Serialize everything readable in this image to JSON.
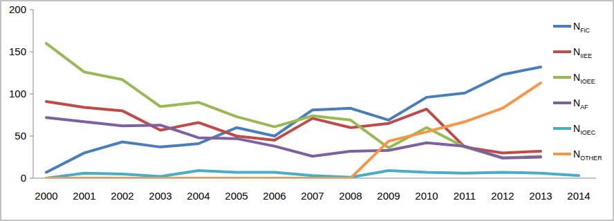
{
  "chart_data": {
    "type": "line",
    "categories": [
      "2000",
      "2001",
      "2002",
      "2003",
      "2004",
      "2005",
      "2006",
      "2007",
      "2008",
      "2009",
      "2010",
      "2011",
      "2012",
      "2013",
      "2014"
    ],
    "ylim": [
      0,
      200
    ],
    "yticks": [
      0,
      50,
      100,
      150,
      200
    ],
    "grid": false,
    "legend": "right",
    "series": [
      {
        "name": "NFiC",
        "color": "#4a7ebb",
        "values": [
          7,
          30,
          43,
          37,
          41,
          60,
          50,
          81,
          83,
          69,
          96,
          101,
          123,
          132,
          null
        ]
      },
      {
        "name": "NIIEE",
        "color": "#be4b48",
        "values": [
          91,
          84,
          80,
          57,
          66,
          50,
          45,
          71,
          60,
          65,
          82,
          37,
          30,
          32,
          null
        ]
      },
      {
        "name": "NIOEE",
        "color": "#98b954",
        "values": [
          160,
          126,
          117,
          85,
          90,
          73,
          61,
          74,
          69,
          36,
          60,
          37,
          24,
          26,
          null
        ]
      },
      {
        "name": "NAF",
        "color": "#7d60a0",
        "values": [
          72,
          67,
          62,
          63,
          48,
          47,
          38,
          26,
          32,
          33,
          42,
          38,
          24,
          25,
          null
        ]
      },
      {
        "name": "NIOEC",
        "color": "#4bacc6",
        "values": [
          0,
          6,
          5,
          2,
          9,
          7,
          7,
          3,
          1,
          9,
          7,
          6,
          7,
          6,
          3
        ]
      },
      {
        "name": "NOTHER",
        "color": "#f79646",
        "values": [
          0,
          0,
          0,
          0,
          0,
          0,
          0,
          0,
          0,
          44,
          55,
          67,
          83,
          113,
          null
        ]
      }
    ]
  }
}
